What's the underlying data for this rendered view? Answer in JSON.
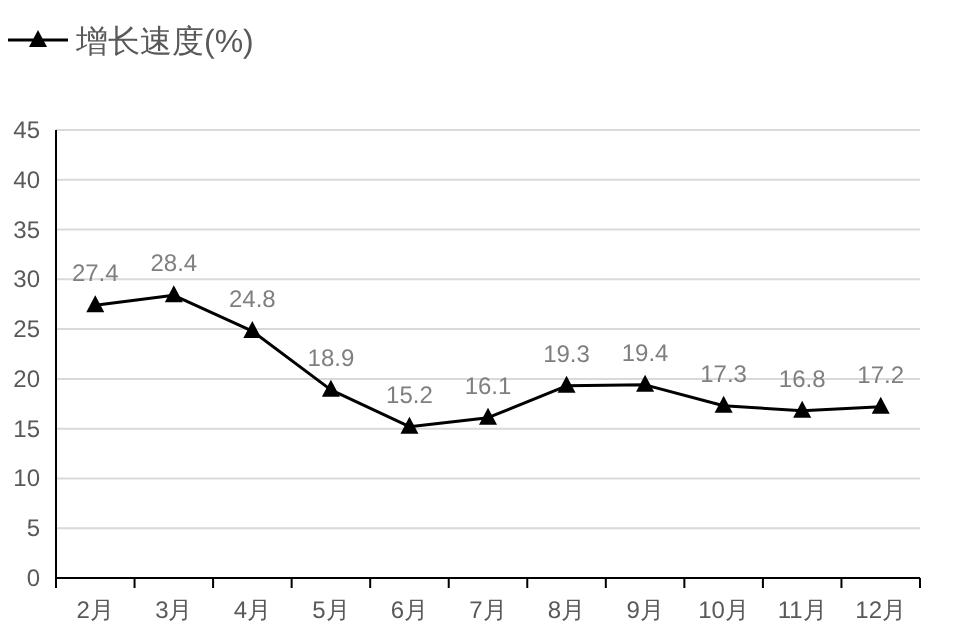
{
  "chart_data": {
    "type": "line",
    "categories": [
      "2月",
      "3月",
      "4月",
      "5月",
      "6月",
      "7月",
      "8月",
      "9月",
      "10月",
      "11月",
      "12月"
    ],
    "series": [
      {
        "name": "增长速度(%)",
        "color": "#000000",
        "values": [
          27.4,
          28.4,
          24.8,
          18.9,
          15.2,
          16.1,
          19.3,
          19.4,
          17.3,
          16.8,
          17.2
        ]
      }
    ],
    "ylim": [
      0,
      45
    ],
    "yticks": [
      0,
      5,
      10,
      15,
      20,
      25,
      30,
      35,
      40,
      45
    ],
    "grid": "y",
    "legend": "top left",
    "marker": "triangle",
    "line_style": "solid",
    "data_labels": true
  }
}
